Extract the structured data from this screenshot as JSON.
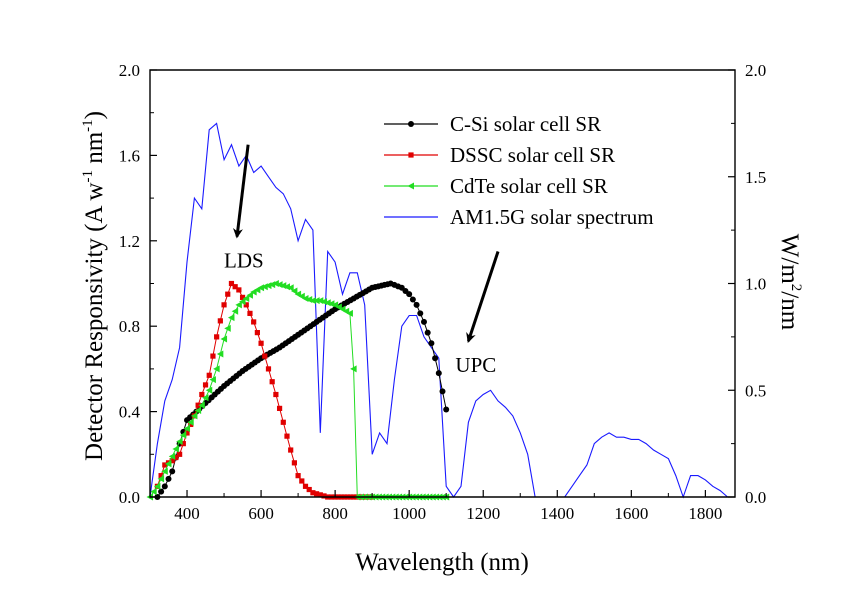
{
  "chart_data": {
    "type": "line",
    "xlabel": "Wavelength (nm)",
    "ylabel": "Detector Responsivity (A w",
    "ylabel_sup1": "-1",
    "ylabel_mid": " nm",
    "ylabel_sup2": "-1",
    "ylabel_end": ")",
    "y2label": "W/m",
    "y2label_sup": "2",
    "y2label_end": "/nm",
    "xlim": [
      300,
      1880
    ],
    "ylim": [
      0,
      2.0
    ],
    "y2lim": [
      0,
      2.0
    ],
    "xticks": [
      "400",
      "600",
      "800",
      "1000",
      "1200",
      "1400",
      "1600",
      "1800"
    ],
    "yticks": [
      "0.0",
      "0.4",
      "0.8",
      "1.2",
      "1.6",
      "2.0"
    ],
    "y2ticks": [
      "0.0",
      "0.5",
      "1.0",
      "1.5",
      "2.0"
    ],
    "legend_position": "top-right",
    "series": [
      {
        "name": "C-Si solar cell SR",
        "color": "#000000",
        "marker": "circle",
        "x": [
          320,
          340,
          360,
          380,
          400,
          450,
          500,
          550,
          600,
          650,
          700,
          750,
          800,
          850,
          900,
          950,
          980,
          1000,
          1020,
          1040,
          1060,
          1080,
          1100
        ],
        "y": [
          0.0,
          0.05,
          0.12,
          0.25,
          0.36,
          0.44,
          0.52,
          0.59,
          0.65,
          0.7,
          0.76,
          0.82,
          0.88,
          0.93,
          0.98,
          1.0,
          0.98,
          0.95,
          0.9,
          0.82,
          0.72,
          0.58,
          0.41
        ]
      },
      {
        "name": "DSSC solar cell SR",
        "color": "#e00000",
        "marker": "square",
        "x": [
          320,
          340,
          360,
          380,
          400,
          420,
          440,
          460,
          480,
          500,
          520,
          540,
          560,
          580,
          600,
          620,
          640,
          660,
          680,
          700,
          720,
          740,
          760,
          780,
          800,
          850,
          900
        ],
        "y": [
          0.05,
          0.15,
          0.17,
          0.2,
          0.3,
          0.38,
          0.48,
          0.57,
          0.75,
          0.9,
          1.0,
          0.97,
          0.9,
          0.82,
          0.72,
          0.6,
          0.48,
          0.35,
          0.22,
          0.1,
          0.05,
          0.02,
          0.01,
          0.0,
          0.0,
          0.0,
          0.0
        ]
      },
      {
        "name": "CdTe solar cell SR",
        "color": "#22dd22",
        "marker": "triangle",
        "x": [
          300,
          320,
          340,
          360,
          380,
          400,
          420,
          440,
          460,
          480,
          500,
          520,
          540,
          560,
          580,
          600,
          620,
          640,
          660,
          680,
          700,
          720,
          740,
          760,
          780,
          800,
          820,
          840,
          850,
          860,
          900,
          1000,
          1100
        ],
        "y": [
          0.0,
          0.05,
          0.12,
          0.19,
          0.26,
          0.32,
          0.38,
          0.43,
          0.5,
          0.6,
          0.74,
          0.84,
          0.9,
          0.93,
          0.96,
          0.98,
          0.99,
          1.0,
          0.99,
          0.98,
          0.95,
          0.93,
          0.92,
          0.92,
          0.91,
          0.9,
          0.88,
          0.86,
          0.6,
          0.0,
          0.0,
          0.0,
          0.0
        ]
      },
      {
        "name": "AM1.5G solar spectrum",
        "color": "#1a1aff",
        "marker": "none",
        "axis": "right",
        "x": [
          300,
          320,
          340,
          360,
          380,
          400,
          420,
          440,
          460,
          480,
          500,
          520,
          540,
          560,
          580,
          600,
          620,
          640,
          660,
          680,
          700,
          720,
          740,
          760,
          780,
          800,
          820,
          840,
          860,
          880,
          900,
          920,
          940,
          960,
          980,
          1000,
          1020,
          1040,
          1060,
          1080,
          1100,
          1120,
          1140,
          1160,
          1180,
          1200,
          1220,
          1240,
          1260,
          1280,
          1300,
          1320,
          1340,
          1360,
          1380,
          1400,
          1420,
          1440,
          1460,
          1480,
          1500,
          1520,
          1540,
          1560,
          1580,
          1600,
          1620,
          1640,
          1660,
          1680,
          1700,
          1720,
          1740,
          1760,
          1780,
          1800,
          1820,
          1840,
          1860
        ],
        "y": [
          0.0,
          0.25,
          0.45,
          0.55,
          0.7,
          1.1,
          1.4,
          1.35,
          1.72,
          1.75,
          1.58,
          1.65,
          1.55,
          1.6,
          1.52,
          1.55,
          1.5,
          1.45,
          1.42,
          1.35,
          1.2,
          1.3,
          1.25,
          0.3,
          1.15,
          1.1,
          0.95,
          1.05,
          1.05,
          0.9,
          0.2,
          0.3,
          0.25,
          0.55,
          0.8,
          0.85,
          0.85,
          0.75,
          0.7,
          0.65,
          0.05,
          0.0,
          0.05,
          0.35,
          0.45,
          0.48,
          0.5,
          0.45,
          0.42,
          0.38,
          0.3,
          0.2,
          0.0,
          0.0,
          0.0,
          0.0,
          0.0,
          0.05,
          0.1,
          0.15,
          0.25,
          0.28,
          0.3,
          0.28,
          0.28,
          0.27,
          0.27,
          0.25,
          0.22,
          0.2,
          0.18,
          0.1,
          0.0,
          0.1,
          0.1,
          0.08,
          0.05,
          0.03,
          0.0
        ]
      }
    ],
    "annotations": [
      {
        "text": "LDS",
        "arrow_from": [
          565,
          1.65
        ],
        "arrow_to": [
          535,
          1.22
        ]
      },
      {
        "text": "UPC",
        "arrow_from": [
          1240,
          1.15
        ],
        "arrow_to": [
          1160,
          0.73
        ]
      }
    ]
  }
}
